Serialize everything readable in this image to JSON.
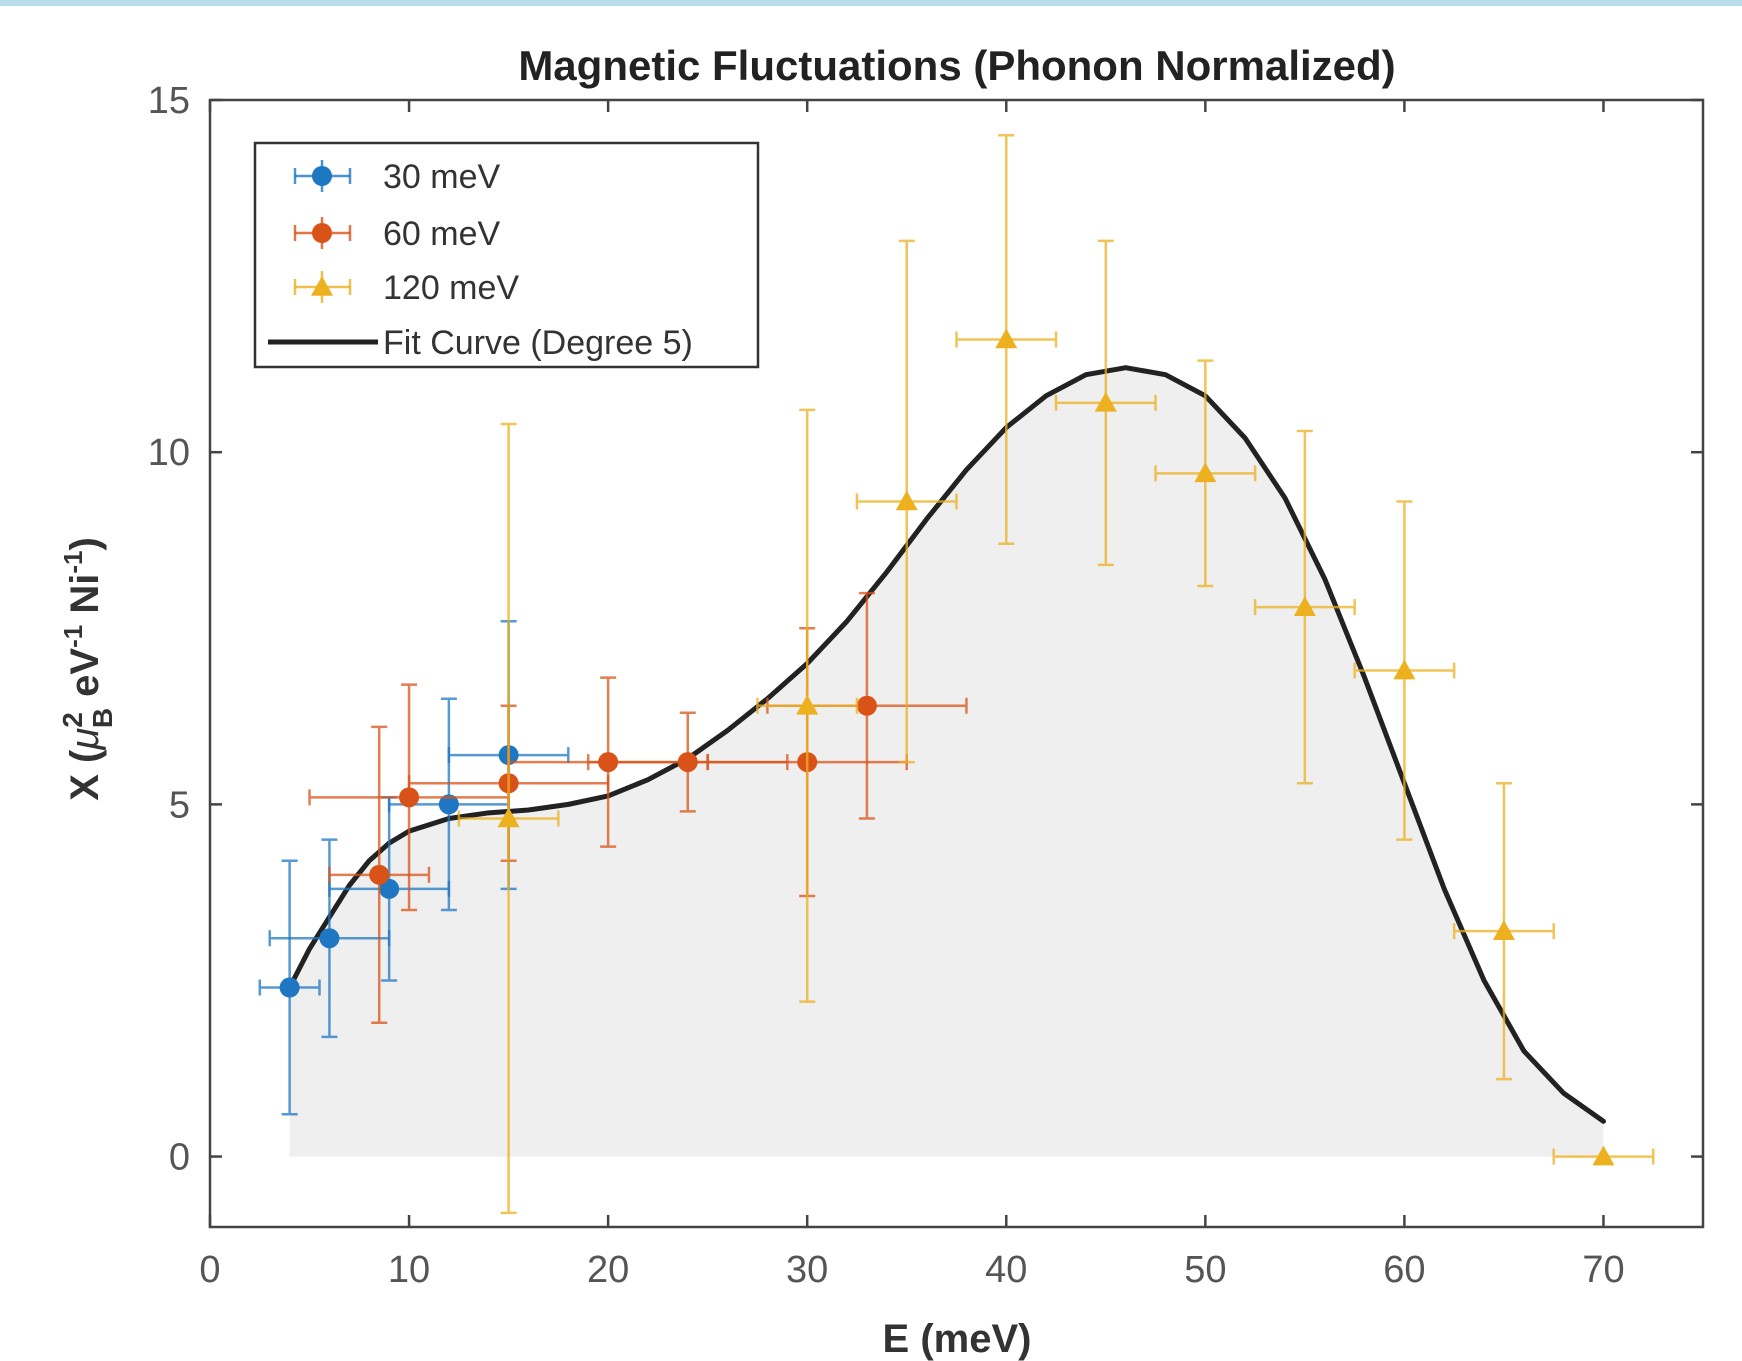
{
  "chart_data": {
    "type": "scatter",
    "title": "Magnetic Fluctuations (Phonon Normalized)",
    "xlabel": "E (meV)",
    "ylabel": {
      "prefix": "X (",
      "mu": "μ",
      "sup2": "2",
      "subB": "B",
      "ev": " eV",
      "sup1a": "-1",
      "ni": " Ni",
      "sup1b": "-1",
      "suffix": ")"
    },
    "xlim": [
      0,
      75
    ],
    "ylim": [
      -1,
      15
    ],
    "x_ticks": [
      {
        "value": 0,
        "label": "0"
      },
      {
        "value": 10,
        "label": "10"
      },
      {
        "value": 20,
        "label": "20"
      },
      {
        "value": 30,
        "label": "30"
      },
      {
        "value": 40,
        "label": "40"
      },
      {
        "value": 50,
        "label": "50"
      },
      {
        "value": 60,
        "label": "60"
      },
      {
        "value": 70,
        "label": "70"
      }
    ],
    "y_ticks": [
      {
        "value": 0,
        "label": "0"
      },
      {
        "value": 5,
        "label": "5"
      },
      {
        "value": 10,
        "label": "10"
      },
      {
        "value": 15,
        "label": "15"
      }
    ],
    "legend_position": "top-left",
    "series": [
      {
        "name": "30 meV",
        "color": "#1f77c4",
        "marker": "circle",
        "points": [
          {
            "x": 4,
            "y": 2.4,
            "xerr": 1.5,
            "yerr": 1.8
          },
          {
            "x": 6,
            "y": 3.1,
            "xerr": 3.0,
            "yerr": 1.4
          },
          {
            "x": 9,
            "y": 3.8,
            "xerr": 3.0,
            "yerr": 1.3
          },
          {
            "x": 12,
            "y": 5.0,
            "xerr": 3.0,
            "yerr": 1.5
          },
          {
            "x": 15,
            "y": 5.7,
            "xerr": 3.0,
            "yerr": 1.9
          }
        ]
      },
      {
        "name": "60 meV",
        "color": "#d95319",
        "marker": "circle",
        "points": [
          {
            "x": 8.5,
            "y": 4.0,
            "xerr": 2.5,
            "yerr": 2.1
          },
          {
            "x": 10,
            "y": 5.1,
            "xerr": 5.0,
            "yerr": 1.6
          },
          {
            "x": 15,
            "y": 5.3,
            "xerr": 5.0,
            "yerr": 1.1
          },
          {
            "x": 20,
            "y": 5.6,
            "xerr": 5.0,
            "yerr": 1.2
          },
          {
            "x": 24,
            "y": 5.6,
            "xerr": 5.0,
            "yerr": 0.7
          },
          {
            "x": 30,
            "y": 5.6,
            "xerr": 5.0,
            "yerr": 1.9
          },
          {
            "x": 33,
            "y": 6.4,
            "xerr": 5.0,
            "yerr": 1.6
          }
        ]
      },
      {
        "name": "120 meV",
        "color": "#edb120",
        "marker": "triangle",
        "points": [
          {
            "x": 15,
            "y": 4.8,
            "xerr": 2.5,
            "yerr": 5.6
          },
          {
            "x": 30,
            "y": 6.4,
            "xerr": 2.5,
            "yerr": 4.2
          },
          {
            "x": 35,
            "y": 9.3,
            "xerr": 2.5,
            "yerr": 3.7
          },
          {
            "x": 40,
            "y": 11.6,
            "xerr": 2.5,
            "yerr": 2.9
          },
          {
            "x": 45,
            "y": 10.7,
            "xerr": 2.5,
            "yerr": 2.3
          },
          {
            "x": 50,
            "y": 9.7,
            "xerr": 2.5,
            "yerr": 1.6
          },
          {
            "x": 55,
            "y": 7.8,
            "xerr": 2.5,
            "yerr": 2.5
          },
          {
            "x": 60,
            "y": 6.9,
            "xerr": 2.5,
            "yerr": 2.4
          },
          {
            "x": 65,
            "y": 3.2,
            "xerr": 2.5,
            "yerr": 2.1
          },
          {
            "x": 70,
            "y": 0.0,
            "xerr": 2.5,
            "yerr": 0
          }
        ]
      }
    ],
    "fit_curve": {
      "name": "Fit Curve (Degree 5)",
      "color": "#222222",
      "points": [
        [
          4,
          2.4
        ],
        [
          5,
          2.95
        ],
        [
          6,
          3.4
        ],
        [
          7,
          3.85
        ],
        [
          8,
          4.2
        ],
        [
          9,
          4.45
        ],
        [
          10,
          4.62
        ],
        [
          12,
          4.8
        ],
        [
          14,
          4.88
        ],
        [
          16,
          4.92
        ],
        [
          18,
          5.0
        ],
        [
          20,
          5.12
        ],
        [
          22,
          5.35
        ],
        [
          24,
          5.65
        ],
        [
          26,
          6.05
        ],
        [
          28,
          6.5
        ],
        [
          30,
          7.0
        ],
        [
          32,
          7.6
        ],
        [
          34,
          8.3
        ],
        [
          36,
          9.05
        ],
        [
          38,
          9.75
        ],
        [
          40,
          10.35
        ],
        [
          42,
          10.8
        ],
        [
          44,
          11.1
        ],
        [
          46,
          11.2
        ],
        [
          48,
          11.1
        ],
        [
          50,
          10.8
        ],
        [
          52,
          10.2
        ],
        [
          54,
          9.35
        ],
        [
          56,
          8.2
        ],
        [
          58,
          6.8
        ],
        [
          60,
          5.3
        ],
        [
          62,
          3.8
        ],
        [
          64,
          2.5
        ],
        [
          66,
          1.5
        ],
        [
          68,
          0.9
        ],
        [
          70,
          0.5
        ]
      ]
    },
    "shaded_area": {
      "color": "#efefef",
      "x_range": [
        4,
        70
      ]
    }
  }
}
